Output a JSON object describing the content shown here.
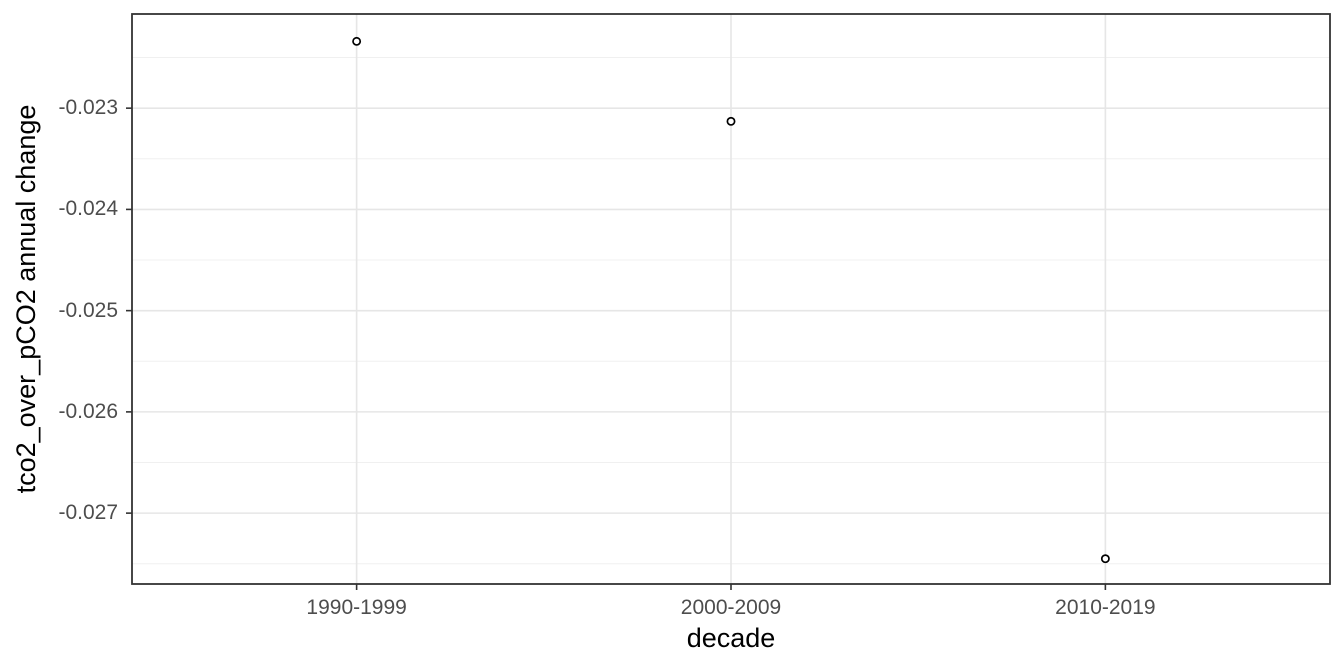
{
  "chart_data": {
    "type": "scatter",
    "title": "",
    "xlabel": "decade",
    "ylabel": "tco2_over_pCO2 annual change",
    "categories": [
      "1990-1999",
      "2000-2009",
      "2010-2019"
    ],
    "values": [
      -0.02234,
      -0.02313,
      -0.02745
    ],
    "y_major_ticks": [
      -0.023,
      -0.024,
      -0.025,
      -0.026,
      -0.027
    ],
    "y_tick_labels": [
      "-0.023",
      "-0.024",
      "-0.025",
      "-0.026",
      "-0.027"
    ],
    "y_minor_gridlines": [
      -0.0225,
      -0.0235,
      -0.0245,
      -0.0255,
      -0.0265,
      -0.0275
    ],
    "ylim": [
      -0.0277,
      -0.02207
    ],
    "x_scale": "discrete",
    "grid": "horizontal major+minor, vertical major per category",
    "legend_position": "none",
    "point_shape": "open-circle"
  },
  "colors": {
    "background": "#ffffff",
    "panel_background": "#ffffff",
    "panel_border": "#333333",
    "grid_major": "#e6e6e6",
    "grid_minor": "#f0f0f0",
    "tick_mark": "#333333",
    "tick_label": "#4d4d4d",
    "axis_title": "#000000",
    "point_stroke": "#000000",
    "point_fill": "#ffffff"
  }
}
